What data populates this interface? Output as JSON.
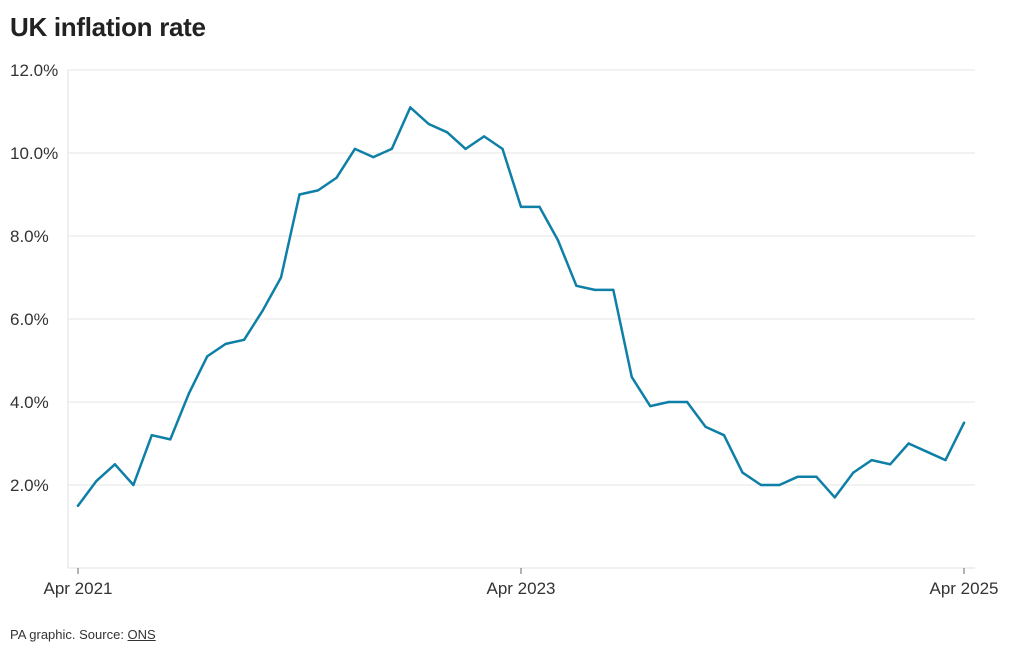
{
  "chart_data": {
    "type": "line",
    "title": "UK inflation rate",
    "xlabel": "",
    "ylabel": "",
    "ylim": [
      0,
      12
    ],
    "y_ticks": [
      {
        "value": 2,
        "label": "2.0%"
      },
      {
        "value": 4,
        "label": "4.0%"
      },
      {
        "value": 6,
        "label": "6.0%"
      },
      {
        "value": 8,
        "label": "8.0%"
      },
      {
        "value": 10,
        "label": "10.0%"
      },
      {
        "value": 12,
        "label": "12.0%"
      }
    ],
    "x_ticks": [
      {
        "value": "2021-04",
        "label": "Apr 2021"
      },
      {
        "value": "2023-04",
        "label": "Apr 2023"
      },
      {
        "value": "2025-04",
        "label": "Apr 2025"
      }
    ],
    "grid": "horizontal",
    "color": "#0e7fa6",
    "series": [
      {
        "x": [
          "2021-04",
          "2021-05",
          "2021-06",
          "2021-07",
          "2021-08",
          "2021-09",
          "2021-10",
          "2021-11",
          "2021-12",
          "2022-01",
          "2022-02",
          "2022-03",
          "2022-04",
          "2022-05",
          "2022-06",
          "2022-07",
          "2022-08",
          "2022-09",
          "2022-10",
          "2022-11",
          "2022-12",
          "2023-01",
          "2023-02",
          "2023-03",
          "2023-04",
          "2023-05",
          "2023-06",
          "2023-07",
          "2023-08",
          "2023-09",
          "2023-10",
          "2023-11",
          "2023-12",
          "2024-01",
          "2024-02",
          "2024-03",
          "2024-04",
          "2024-05",
          "2024-06",
          "2024-07",
          "2024-08",
          "2024-09",
          "2024-10",
          "2024-11",
          "2024-12",
          "2025-01",
          "2025-02",
          "2025-03",
          "2025-04"
        ],
        "values": [
          1.5,
          2.1,
          2.5,
          2.0,
          3.2,
          3.1,
          4.2,
          5.1,
          5.4,
          5.5,
          6.2,
          7.0,
          9.0,
          9.1,
          9.4,
          10.1,
          9.9,
          10.1,
          11.1,
          10.7,
          10.5,
          10.1,
          10.4,
          10.1,
          8.7,
          8.7,
          7.9,
          6.8,
          6.7,
          6.7,
          4.6,
          3.9,
          4.0,
          4.0,
          3.4,
          3.2,
          2.3,
          2.0,
          2.0,
          2.2,
          2.2,
          1.7,
          2.3,
          2.6,
          2.5,
          3.0,
          2.8,
          2.6,
          3.5
        ]
      }
    ]
  },
  "footer": {
    "text": "PA graphic. Source: ",
    "source_link": "ONS"
  }
}
